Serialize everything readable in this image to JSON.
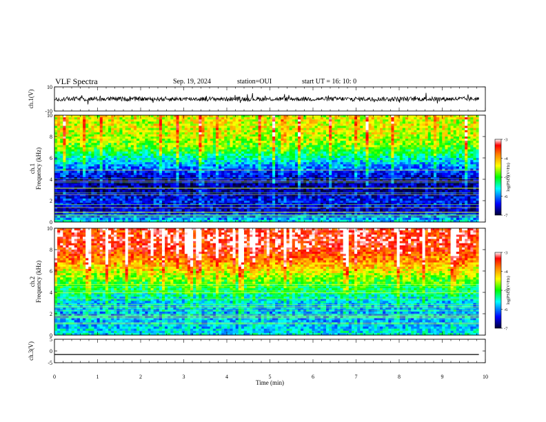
{
  "header": {
    "title": "VLF Spectra",
    "date": "Sep. 19, 2024",
    "station": "station=OUI",
    "start": "start  UT =   16: 10: 0"
  },
  "chart_data": [
    {
      "type": "line",
      "title": "",
      "ylabel": "ch.1(V)",
      "ylim": [
        -10,
        10
      ],
      "yticks": [
        "10",
        "-10"
      ],
      "xlim": [
        0,
        10
      ],
      "description_values": {
        "mean": 0,
        "noise_amplitude": 3
      }
    },
    {
      "type": "heatmap",
      "ylabel": "Frequency  (kHz)",
      "channel_label": "ch.1",
      "ylim": [
        0,
        10
      ],
      "yticks": [
        "0",
        "2",
        "4",
        "6",
        "8",
        "10"
      ],
      "xlim": [
        0,
        10
      ],
      "data_end_min": 9.85,
      "colorbar": {
        "label": "log(PSD)(V²/Hz)",
        "range": [
          -7,
          -3
        ],
        "ticks": [
          "-3",
          "-4",
          "-5",
          "-6",
          "-7"
        ]
      },
      "profile_log_psd": [
        -5.6,
        -6.6,
        -6.4,
        -6.8,
        -6.7,
        -6.2,
        -5.6,
        -5.0,
        -4.7,
        -4.6,
        -4.6
      ],
      "profile_freq_khz": [
        0,
        1,
        2,
        3,
        4,
        5,
        6,
        7,
        8,
        9,
        10
      ]
    },
    {
      "type": "heatmap",
      "ylabel": "Frequency  (kHz)",
      "channel_label": "ch.2",
      "ylim": [
        0,
        10
      ],
      "yticks": [
        "0",
        "2",
        "4",
        "6",
        "8",
        "10"
      ],
      "xlim": [
        0,
        10
      ],
      "data_end_min": 9.85,
      "colorbar": {
        "label": "log(PSD)(V²/Hz)",
        "range": [
          -7,
          -3
        ],
        "ticks": [
          "-3",
          "-4",
          "-5",
          "-6",
          "-7"
        ]
      },
      "profile_log_psd": [
        -5.6,
        -5.8,
        -5.9,
        -5.8,
        -5.4,
        -5.0,
        -4.5,
        -4.0,
        -3.6,
        -3.5,
        -3.6
      ],
      "profile_freq_khz": [
        0,
        1,
        2,
        3,
        4,
        5,
        6,
        7,
        8,
        9,
        10
      ]
    },
    {
      "type": "line",
      "ylabel": "ch.3(V)",
      "ylim": [
        -5,
        5
      ],
      "yticks": [
        "5",
        "0",
        "-5"
      ],
      "xlim": [
        0,
        10
      ],
      "xlabel": "Time  (min)",
      "xticks": [
        "0",
        "1",
        "2",
        "3",
        "4",
        "5",
        "6",
        "7",
        "8",
        "9",
        "10"
      ],
      "constant_value": -1.5
    }
  ]
}
